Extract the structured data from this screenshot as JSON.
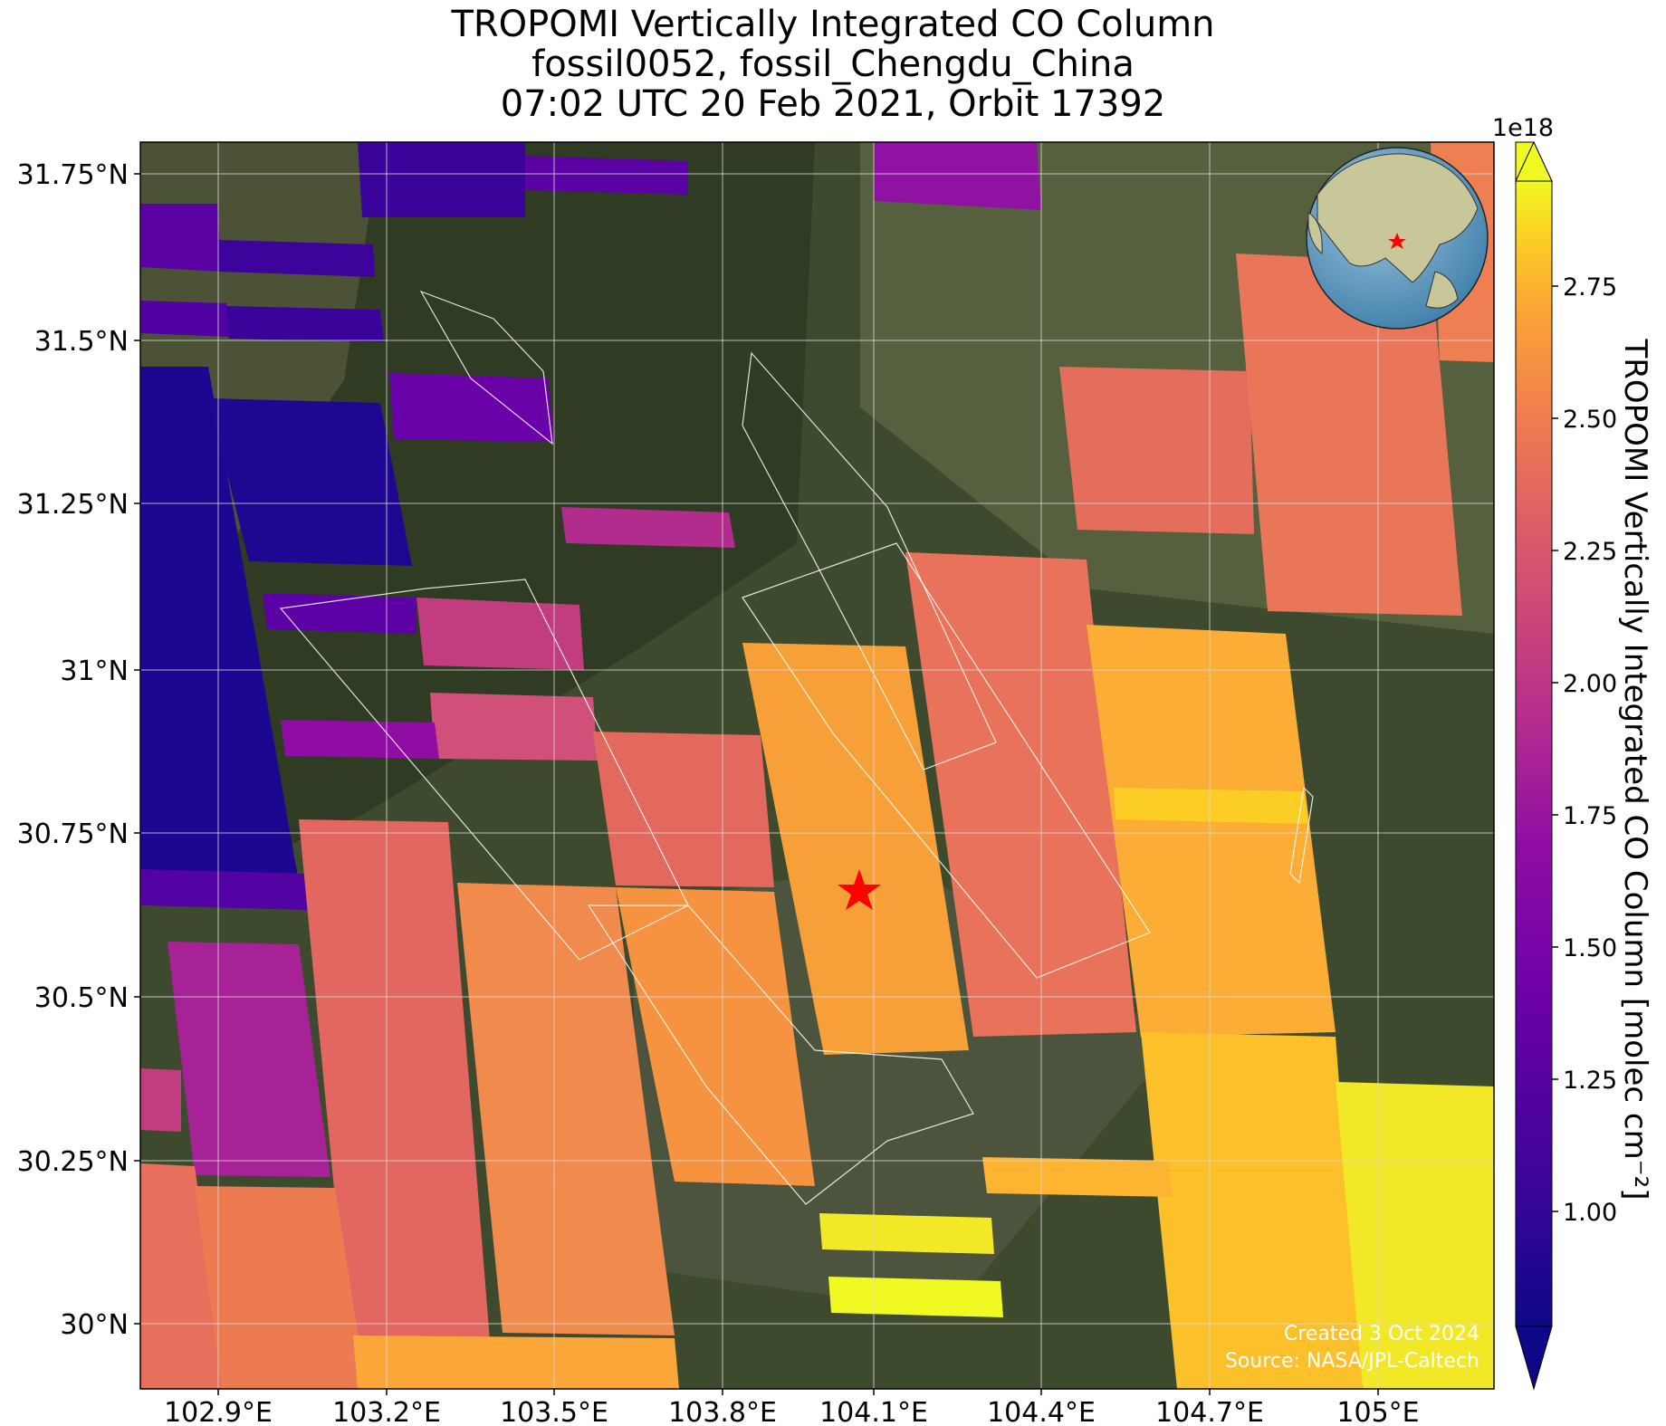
{
  "title": {
    "line1": "TROPOMI Vertically Integrated CO Column",
    "line2": "fossil0052, fossil_Chengdu_China",
    "line3": "07:02 UTC 20 Feb 2021, Orbit 17392"
  },
  "map": {
    "lon_range": [
      102.75,
      105.25
    ],
    "lat_range": [
      29.9,
      31.8
    ],
    "lon_ticks": [
      "102.9°E",
      "103.2°E",
      "103.5°E",
      "103.8°E",
      "104.1°E",
      "104.4°E",
      "104.7°E",
      "105°E"
    ],
    "lat_ticks": [
      "31.75°N",
      "31.5°N",
      "31.25°N",
      "31°N",
      "30.75°N",
      "30.5°N",
      "30.25°N",
      "30°N"
    ],
    "grid": true,
    "basemap": "satellite imagery",
    "target_marker": {
      "symbol": "star",
      "color": "#ff0000",
      "lon": 104.07,
      "lat": 30.67
    }
  },
  "colorbar": {
    "label": "TROPOMI Vertically Integrated CO Column [molec cm⁻²]",
    "multiplier": "1e18",
    "ticks": [
      "1.00",
      "1.25",
      "1.50",
      "1.75",
      "2.00",
      "2.25",
      "2.50",
      "2.75"
    ],
    "range": [
      0.8,
      2.9
    ],
    "colormap": "plasma",
    "extend": "both"
  },
  "inset": {
    "type": "globe",
    "marker_color": "#ff0000"
  },
  "credits": {
    "created": "Created 3 Oct 2024",
    "source": "Source: NASA/JPL-Caltech"
  }
}
